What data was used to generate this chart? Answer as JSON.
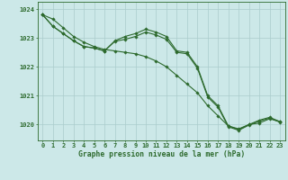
{
  "title": "Graphe pression niveau de la mer (hPa)",
  "hours": [
    0,
    1,
    2,
    3,
    4,
    5,
    6,
    7,
    8,
    9,
    10,
    11,
    12,
    13,
    14,
    15,
    16,
    17,
    18,
    19,
    20,
    21,
    22,
    23
  ],
  "line1": [
    1023.8,
    1023.65,
    1023.35,
    1023.05,
    1022.85,
    1022.7,
    1022.6,
    1022.55,
    1022.5,
    1022.45,
    1022.35,
    1022.2,
    1022.0,
    1021.7,
    1021.4,
    1021.1,
    1020.65,
    1020.3,
    1019.95,
    1019.85,
    1020.0,
    1020.05,
    1020.2,
    1020.1
  ],
  "line2": [
    1023.8,
    1023.4,
    1023.15,
    1022.9,
    1022.7,
    1022.65,
    1022.55,
    1022.9,
    1023.05,
    1023.15,
    1023.3,
    1023.2,
    1023.05,
    1022.55,
    1022.5,
    1022.0,
    1021.0,
    1020.65,
    1019.95,
    1019.82,
    1020.0,
    1020.15,
    1020.25,
    1020.1
  ],
  "line3": [
    1023.8,
    1023.4,
    1023.15,
    1022.9,
    1022.7,
    1022.65,
    1022.55,
    1022.88,
    1022.95,
    1023.05,
    1023.2,
    1023.1,
    1022.95,
    1022.5,
    1022.45,
    1021.95,
    1020.95,
    1020.6,
    1019.92,
    1019.8,
    1019.98,
    1020.12,
    1020.22,
    1020.08
  ],
  "line_color": "#2d6a2d",
  "bg_color": "#cce8e8",
  "grid_color": "#aacccc",
  "ylim_min": 1019.45,
  "ylim_max": 1024.25,
  "yticks": [
    1020,
    1021,
    1022,
    1023,
    1024
  ],
  "marker": "D",
  "marker_size": 1.8,
  "linewidth": 0.8,
  "tick_fontsize": 5.0,
  "label_fontsize": 5.8
}
